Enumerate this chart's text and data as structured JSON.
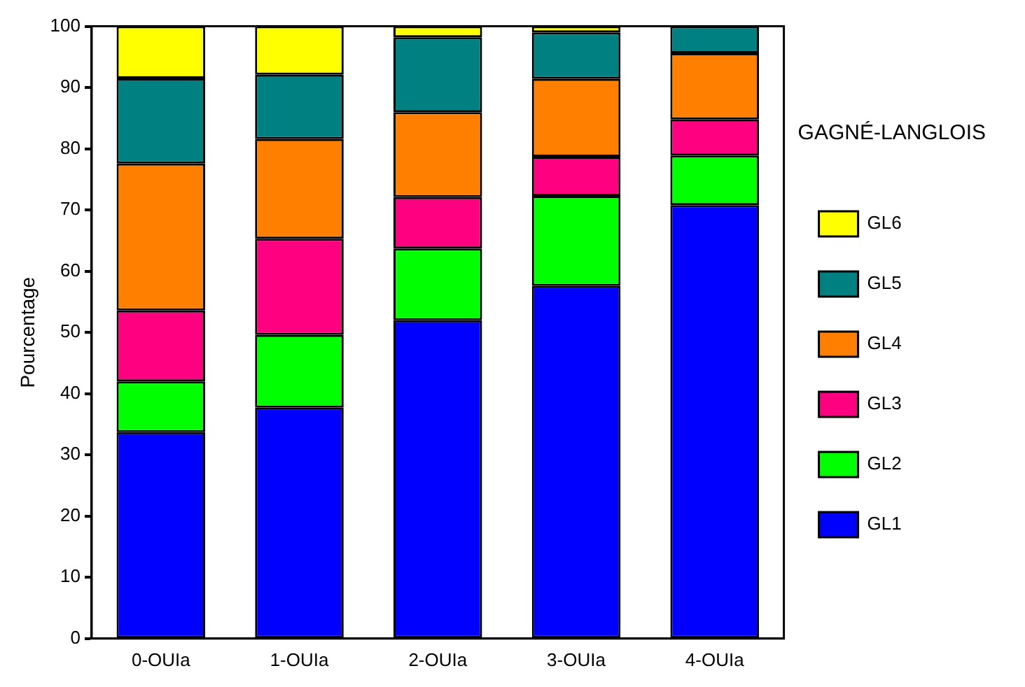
{
  "chart_data": {
    "type": "bar",
    "stacked": true,
    "ylabel": "Pourcentage",
    "legend_title": "GAGNÉ-LANGLOIS",
    "legend": "right",
    "grid": false,
    "categories": [
      "0-OUIa",
      "1-OUIa",
      "2-OUIa",
      "3-OUIa",
      "4-OUIa"
    ],
    "ylim": [
      0,
      100
    ],
    "yticks": [
      0,
      10,
      20,
      30,
      40,
      50,
      60,
      70,
      80,
      90,
      100
    ],
    "series": [
      {
        "name": "GL1",
        "color": "#0000ff",
        "values": [
          33.7,
          37.7,
          52.0,
          57.6,
          70.8
        ]
      },
      {
        "name": "GL2",
        "color": "#00ff00",
        "values": [
          8.3,
          11.9,
          11.7,
          14.7,
          8.1
        ]
      },
      {
        "name": "GL3",
        "color": "#ff0080",
        "values": [
          11.6,
          15.7,
          8.4,
          6.4,
          5.9
        ]
      },
      {
        "name": "GL4",
        "color": "#ff8000",
        "values": [
          24.0,
          16.3,
          13.9,
          12.7,
          10.8
        ]
      },
      {
        "name": "GL5",
        "color": "#008080",
        "values": [
          13.9,
          10.5,
          12.2,
          7.6,
          4.4
        ]
      },
      {
        "name": "GL6",
        "color": "#ffff00",
        "values": [
          8.5,
          7.9,
          1.8,
          1.0,
          0
        ]
      }
    ]
  }
}
